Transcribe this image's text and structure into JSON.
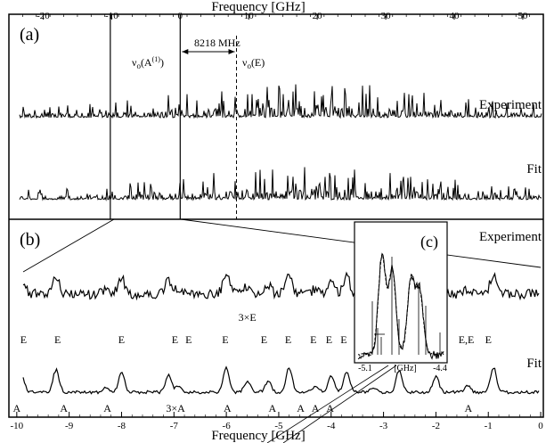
{
  "chart_data": {
    "type": "line",
    "top_axis": {
      "title": "Frequency [GHz]",
      "ticks": [
        -20,
        -10,
        0,
        10,
        20,
        30,
        40,
        50
      ],
      "range": [
        -25,
        53
      ]
    },
    "bottom_axis": {
      "title": "Frequency [GHz]",
      "ticks": [
        -10,
        -9,
        -8,
        -7,
        -6,
        -5,
        -4,
        -3,
        -2,
        -1,
        0
      ],
      "range": [
        -10.15,
        0.05
      ]
    },
    "panel_a": {
      "label": "(a)",
      "experiment_label": "Experiment",
      "fit_label": "Fit",
      "splitting_label": "8218 MHz",
      "nu_a_label": "ν",
      "nu_a_sub": "o",
      "nu_a_arg": "(A",
      "nu_a_sup": "(1)",
      "nu_a_close": ")",
      "nu_e_label": "ν",
      "nu_e_sub": "o",
      "nu_e_arg": "(E)",
      "origin_A_GHz": 0,
      "origin_E_GHz": 8.218,
      "zoom_window_GHz": [
        -10.2,
        0
      ]
    },
    "panel_b": {
      "label": "(b)",
      "experiment_label": "Experiment",
      "fit_label": "Fit",
      "e_labels": [
        {
          "x": -9.87,
          "text": "E"
        },
        {
          "x": -9.22,
          "text": "E"
        },
        {
          "x": -8.0,
          "text": "E"
        },
        {
          "x": -6.98,
          "text": "E"
        },
        {
          "x": -6.72,
          "text": "E"
        },
        {
          "x": -6.02,
          "text": "E"
        },
        {
          "x": -5.6,
          "text": "3×E"
        },
        {
          "x": -5.28,
          "text": "E"
        },
        {
          "x": -4.82,
          "text": "E"
        },
        {
          "x": -4.34,
          "text": "E"
        },
        {
          "x": -4.04,
          "text": "E"
        },
        {
          "x": -3.76,
          "text": "E"
        },
        {
          "x": -1.42,
          "text": "E,E"
        },
        {
          "x": -1.0,
          "text": "E"
        }
      ],
      "a_labels": [
        {
          "x": -10.0,
          "text": "A"
        },
        {
          "x": -9.1,
          "text": "A"
        },
        {
          "x": -8.27,
          "text": "A"
        },
        {
          "x": -6.97,
          "text": "3×A"
        },
        {
          "x": -5.98,
          "text": "A"
        },
        {
          "x": -5.12,
          "text": "A"
        },
        {
          "x": -4.58,
          "text": "A"
        },
        {
          "x": -4.3,
          "text": "A"
        },
        {
          "x": -4.02,
          "text": "A"
        },
        {
          "x": -1.38,
          "text": "A"
        }
      ],
      "peaks_GHz": [
        -9.9,
        -9.25,
        -8.3,
        -8.0,
        -7.1,
        -6.9,
        -6.0,
        -5.6,
        -5.2,
        -4.8,
        -4.3,
        -4.0,
        -3.7,
        -3.2,
        -2.7,
        -2.0,
        -1.4,
        -0.9
      ]
    },
    "inset": {
      "label": "(c)",
      "unit_label": "[GHz]",
      "range": [
        -5.1,
        -4.4
      ],
      "tick_left": "-5.1",
      "tick_right": "-4.4"
    }
  }
}
